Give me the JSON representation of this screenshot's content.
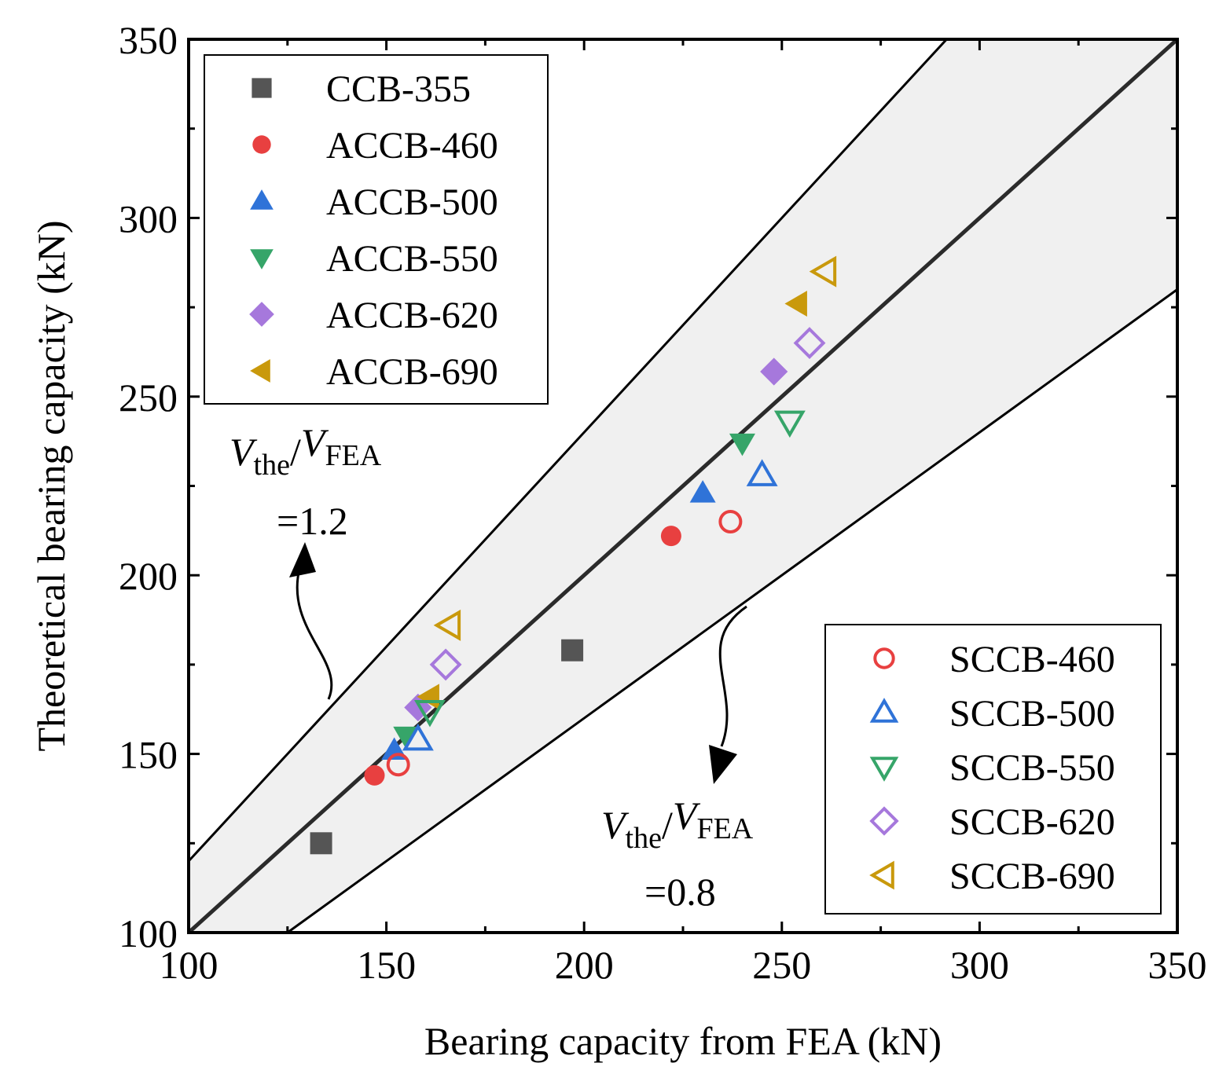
{
  "chart_data": {
    "type": "scatter",
    "xlabel": "Bearing capacity from FEA (kN)",
    "ylabel": "Theoretical bearing capacity (kN)",
    "xlim": [
      100,
      350
    ],
    "ylim": [
      100,
      350
    ],
    "xticks": [
      100,
      150,
      200,
      250,
      300,
      350
    ],
    "yticks": [
      100,
      150,
      200,
      250,
      300,
      350
    ],
    "reference_lines": [
      {
        "name": "ratio-1.0",
        "slope": 1.0,
        "style": "thick"
      },
      {
        "name": "ratio-1.2",
        "slope": 1.2,
        "style": "thin"
      },
      {
        "name": "ratio-0.8",
        "slope": 0.8,
        "style": "thin"
      }
    ],
    "band": {
      "lower_slope": 0.8,
      "upper_slope": 1.2,
      "color": "#f0f0f0"
    },
    "series": [
      {
        "name": "CCB-355",
        "marker": "square",
        "filled": true,
        "color": "#555555",
        "points": [
          [
            133.5,
            125
          ],
          [
            197,
            179
          ]
        ]
      },
      {
        "name": "ACCB-460",
        "marker": "circle",
        "filled": true,
        "color": "#e84040",
        "points": [
          [
            147,
            144
          ],
          [
            222,
            211
          ]
        ]
      },
      {
        "name": "ACCB-500",
        "marker": "triangle-up",
        "filled": true,
        "color": "#2f73d8",
        "points": [
          [
            152,
            151
          ],
          [
            230,
            223
          ]
        ]
      },
      {
        "name": "ACCB-550",
        "marker": "triangle-down",
        "filled": true,
        "color": "#36a569",
        "points": [
          [
            155,
            155
          ],
          [
            240,
            237
          ]
        ]
      },
      {
        "name": "ACCB-620",
        "marker": "diamond",
        "filled": true,
        "color": "#a678dc",
        "points": [
          [
            158,
            163
          ],
          [
            248,
            257
          ]
        ]
      },
      {
        "name": "ACCB-690",
        "marker": "triangle-left",
        "filled": true,
        "color": "#c9990c",
        "points": [
          [
            161,
            166
          ],
          [
            254,
            276
          ]
        ]
      },
      {
        "name": "SCCB-460",
        "marker": "circle",
        "filled": false,
        "color": "#e84040",
        "points": [
          [
            153,
            147
          ],
          [
            237,
            215
          ]
        ]
      },
      {
        "name": "SCCB-500",
        "marker": "triangle-up",
        "filled": false,
        "color": "#2f73d8",
        "points": [
          [
            158,
            154
          ],
          [
            245,
            228
          ]
        ]
      },
      {
        "name": "SCCB-550",
        "marker": "triangle-down",
        "filled": false,
        "color": "#36a569",
        "points": [
          [
            161,
            162
          ],
          [
            252,
            243
          ]
        ]
      },
      {
        "name": "SCCB-620",
        "marker": "diamond",
        "filled": false,
        "color": "#a678dc",
        "points": [
          [
            165,
            175
          ],
          [
            257,
            265
          ]
        ]
      },
      {
        "name": "SCCB-690",
        "marker": "triangle-left",
        "filled": false,
        "color": "#c9990c",
        "points": [
          [
            166,
            186
          ],
          [
            261,
            285
          ]
        ]
      }
    ],
    "legends": [
      {
        "placement": "top-left",
        "entries": [
          "CCB-355",
          "ACCB-460",
          "ACCB-500",
          "ACCB-550",
          "ACCB-620",
          "ACCB-690"
        ]
      },
      {
        "placement": "bottom-right",
        "entries": [
          "SCCB-460",
          "SCCB-500",
          "SCCB-550",
          "SCCB-620",
          "SCCB-690"
        ]
      }
    ],
    "annotations": [
      {
        "name": "upper",
        "var_base": "V",
        "num_sub": "the",
        "den_sub": "FEA",
        "value_text": "=1.2"
      },
      {
        "name": "lower",
        "var_base": "V",
        "num_sub": "the",
        "den_sub": "FEA",
        "value_text": "=0.8"
      }
    ]
  }
}
